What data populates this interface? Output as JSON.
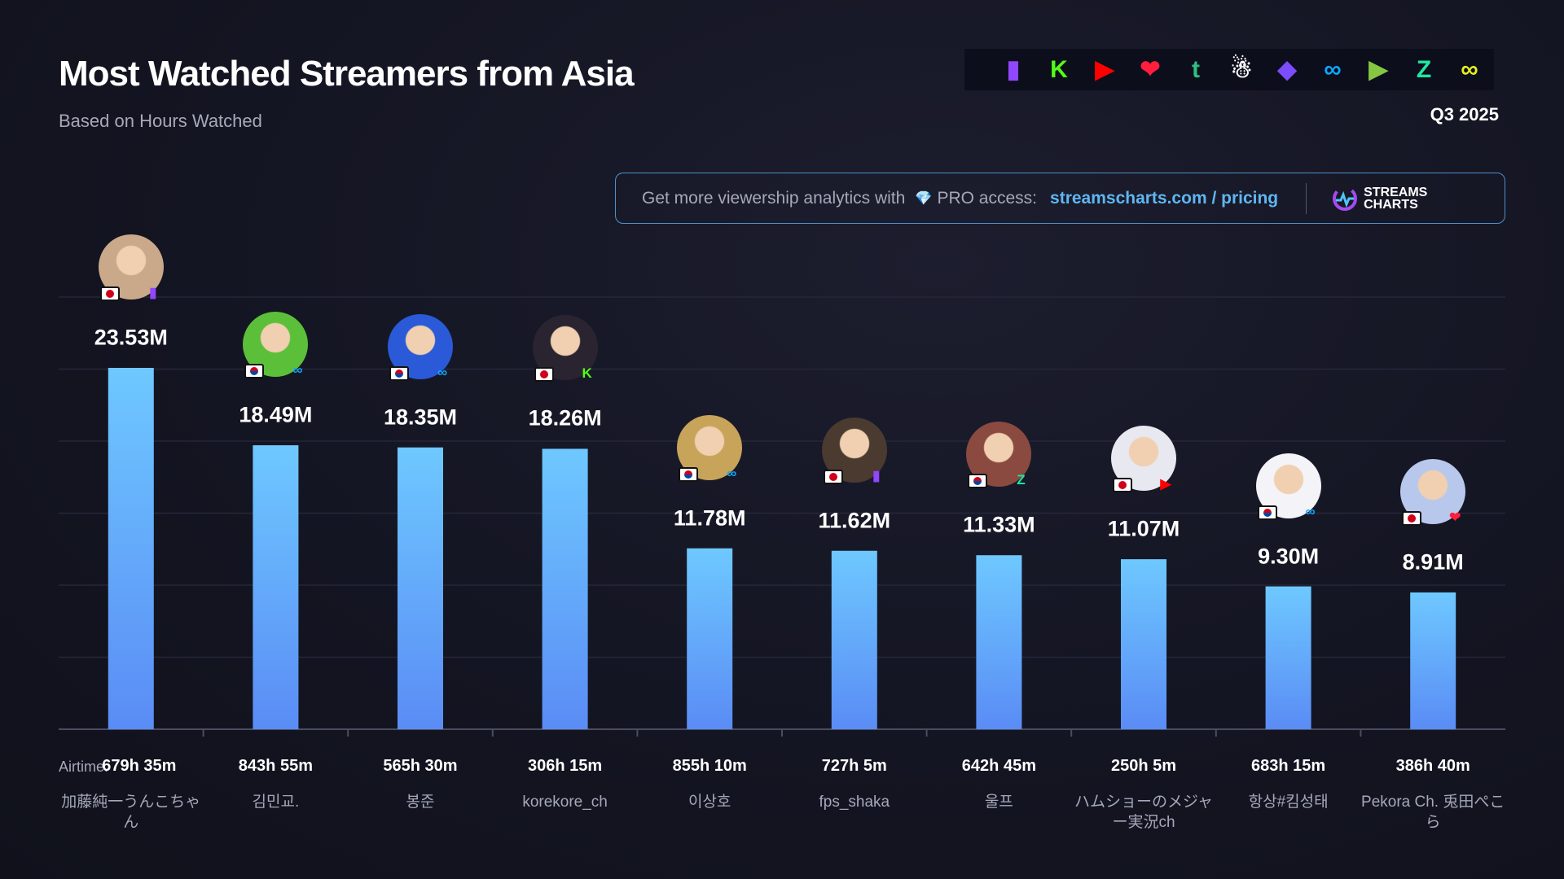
{
  "header": {
    "title": "Most Watched Streamers from Asia",
    "subtitle": "Based on Hours Watched",
    "period": "Q3 2025"
  },
  "platform_icons": [
    {
      "name": "twitch-icon",
      "glyph": "▮",
      "color": "#9146ff"
    },
    {
      "name": "kick-icon",
      "glyph": "K",
      "color": "#53fc18"
    },
    {
      "name": "youtube-icon",
      "glyph": "▶",
      "color": "#ff0000"
    },
    {
      "name": "heart-platform-icon",
      "glyph": "❤",
      "color": "#ff1e3c"
    },
    {
      "name": "trovo-icon",
      "glyph": "t",
      "color": "#2fbf7f"
    },
    {
      "name": "bigo-icon",
      "glyph": "☃",
      "color": "#ffffff"
    },
    {
      "name": "chzzk-bird-icon",
      "glyph": "◆",
      "color": "#7b4dff"
    },
    {
      "name": "soop-icon",
      "glyph": "∞",
      "color": "#0ea5ff"
    },
    {
      "name": "rumble-icon",
      "glyph": "▶",
      "color": "#85c742"
    },
    {
      "name": "zap-icon",
      "glyph": "Z",
      "color": "#1ee8a0"
    },
    {
      "name": "chzzk-icon",
      "glyph": "∞",
      "color": "#e6f01e"
    }
  ],
  "banner": {
    "text": "Get more viewership analytics with",
    "diamond": "💎",
    "pro": "PRO access:",
    "link": "streamscharts.com / pricing",
    "logo_line1": "STREAMS",
    "logo_line2": "CHARTS"
  },
  "chart_data": {
    "type": "bar",
    "title": "Most Watched Streamers from Asia",
    "ylabel": "Hours Watched",
    "airtime_label": "Airtime:",
    "categories": [
      "加藤純一うんこちゃん",
      "김민교.",
      "봉준",
      "korekore_ch",
      "이상호",
      "fps_shaka",
      "울프",
      "ハムショーのメジャー実況ch",
      "항상#킴성태",
      "Pekora Ch. 兎田ぺこら"
    ],
    "values": [
      23.53,
      18.49,
      18.35,
      18.26,
      11.78,
      11.62,
      11.33,
      11.07,
      9.3,
      8.91
    ],
    "value_labels": [
      "23.53M",
      "18.49M",
      "18.35M",
      "18.26M",
      "11.78M",
      "11.62M",
      "11.33M",
      "11.07M",
      "9.30M",
      "8.91M"
    ],
    "airtime": [
      "679h 35m",
      "843h 55m",
      "565h 30m",
      "306h 15m",
      "855h 10m",
      "727h 5m",
      "642h 45m",
      "250h 5m",
      "683h 15m",
      "386h 40m"
    ],
    "countries": [
      "jp",
      "kr",
      "kr",
      "jp",
      "kr",
      "jp",
      "kr",
      "jp",
      "kr",
      "jp"
    ],
    "platforms": [
      "twitch",
      "soop",
      "soop",
      "kick",
      "soop",
      "twitch",
      "zap",
      "youtube",
      "soop",
      "youtube-heart"
    ],
    "grid": true,
    "bar_color_top": "#6ec8ff",
    "bar_color_bottom": "#5a8cf5"
  }
}
